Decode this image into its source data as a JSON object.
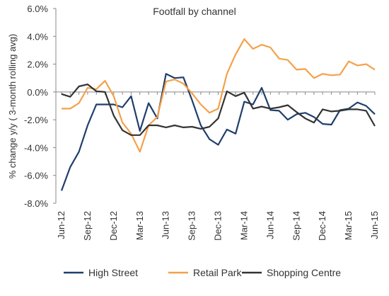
{
  "chart_data": {
    "type": "line",
    "title": "Footfall by channel",
    "ylabel": "% change y/y ( 3-month rolling avg)",
    "xlabel": "",
    "ylim": [
      -8,
      6
    ],
    "yticks": [
      6,
      4,
      2,
      0,
      -2,
      -4,
      -6,
      -8
    ],
    "ytick_labels": [
      "6.0%",
      "4.0%",
      "2.0%",
      "0.0%",
      "-2.0%",
      "-4.0%",
      "-6.0%",
      "-8.0%"
    ],
    "x": [
      "Jun-12",
      "Jul-12",
      "Aug-12",
      "Sep-12",
      "Oct-12",
      "Nov-12",
      "Dec-12",
      "Jan-13",
      "Feb-13",
      "Mar-13",
      "Apr-13",
      "May-13",
      "Jun-13",
      "Jul-13",
      "Aug-13",
      "Sep-13",
      "Oct-13",
      "Nov-13",
      "Dec-13",
      "Jan-14",
      "Feb-14",
      "Mar-14",
      "Apr-14",
      "May-14",
      "Jun-14",
      "Jul-14",
      "Aug-14",
      "Sep-14",
      "Oct-14",
      "Nov-14",
      "Dec-14",
      "Jan-15",
      "Feb-15",
      "Mar-15",
      "Apr-15",
      "May-15",
      "Jun-15"
    ],
    "xtick_labels": [
      "Jun-12",
      "Sep-12",
      "Dec-12",
      "Mar-13",
      "Jun-13",
      "Sep-13",
      "Dec-13",
      "Mar-14",
      "Jun-14",
      "Sep-14",
      "Dec-14",
      "Mar-15",
      "Jun-15"
    ],
    "grid": false,
    "legend_position": "bottom",
    "series": [
      {
        "name": "High Street",
        "color": "#1f3f6b",
        "values": [
          -7.1,
          -5.4,
          -4.3,
          -2.4,
          -0.9,
          -0.9,
          -0.9,
          -1.1,
          -0.3,
          -2.8,
          -0.8,
          -1.9,
          1.3,
          1.0,
          1.05,
          -0.6,
          -2.4,
          -3.4,
          -3.8,
          -2.7,
          -3.0,
          -0.7,
          -0.9,
          0.3,
          -1.3,
          -1.35,
          -2.0,
          -1.6,
          -1.5,
          -1.8,
          -2.3,
          -2.35,
          -1.3,
          -1.2,
          -0.75,
          -1.0,
          -1.6
        ]
      },
      {
        "name": "Retail Park",
        "color": "#f5a04a",
        "values": [
          -1.2,
          -1.2,
          -0.8,
          0.3,
          0.2,
          0.8,
          -0.3,
          -2.2,
          -3.0,
          -4.3,
          -2.4,
          -1.8,
          0.75,
          0.9,
          0.6,
          -0.1,
          -0.9,
          -1.5,
          -1.2,
          1.3,
          2.7,
          3.8,
          3.1,
          3.4,
          3.2,
          2.4,
          2.3,
          1.6,
          1.65,
          1.0,
          1.3,
          1.2,
          1.25,
          2.2,
          1.9,
          2.0,
          1.6
        ]
      },
      {
        "name": "Shopping Centre",
        "color": "#333333",
        "values": [
          -0.15,
          -0.35,
          0.4,
          0.55,
          0.05,
          0.0,
          -1.7,
          -2.75,
          -3.1,
          -3.1,
          -2.4,
          -2.4,
          -2.55,
          -2.4,
          -2.55,
          -2.5,
          -2.65,
          -2.5,
          -1.9,
          0.05,
          -0.3,
          -0.05,
          -1.2,
          -1.05,
          -1.2,
          -1.1,
          -0.95,
          -1.45,
          -1.9,
          -2.2,
          -1.25,
          -1.4,
          -1.35,
          -1.25,
          -1.25,
          -1.35,
          -2.45
        ]
      }
    ]
  }
}
